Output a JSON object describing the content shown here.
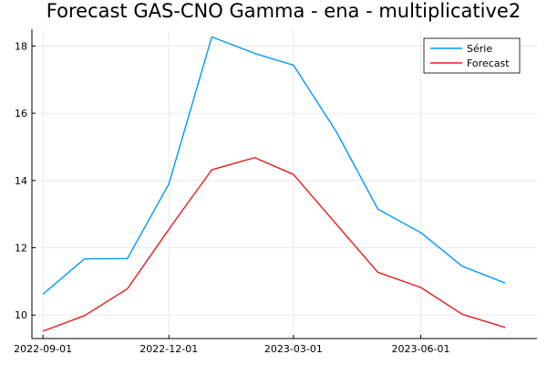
{
  "chart_data": {
    "type": "line",
    "title": "Forecast GAS-CNO Gamma - ena - multiplicative2",
    "xlabel": "",
    "ylabel": "",
    "x": [
      "2022-09-01",
      "2022-10-01",
      "2022-11-01",
      "2022-12-01",
      "2023-01-01",
      "2023-02-01",
      "2023-03-01",
      "2023-04-01",
      "2023-05-01",
      "2023-06-01",
      "2023-07-01",
      "2023-08-01"
    ],
    "x_ticks": [
      "2022-09-01",
      "2022-12-01",
      "2023-03-01",
      "2023-06-01"
    ],
    "y_ticks": [
      10,
      12,
      14,
      16,
      18
    ],
    "xlim": [
      "2022-08-24",
      "2023-08-24"
    ],
    "ylim": [
      9.3,
      18.5
    ],
    "grid": true,
    "legend_position": "top-right",
    "series": [
      {
        "name": "Série",
        "color": "#009af9",
        "values": [
          10.62,
          11.67,
          11.68,
          13.9,
          18.27,
          17.78,
          17.43,
          15.45,
          13.15,
          12.45,
          11.45,
          10.95
        ]
      },
      {
        "name": "Forecast",
        "color": "#e81a1a",
        "values": [
          9.52,
          9.98,
          10.78,
          12.55,
          14.32,
          14.68,
          14.18,
          12.7,
          11.27,
          10.82,
          10.02,
          9.63
        ]
      }
    ]
  }
}
